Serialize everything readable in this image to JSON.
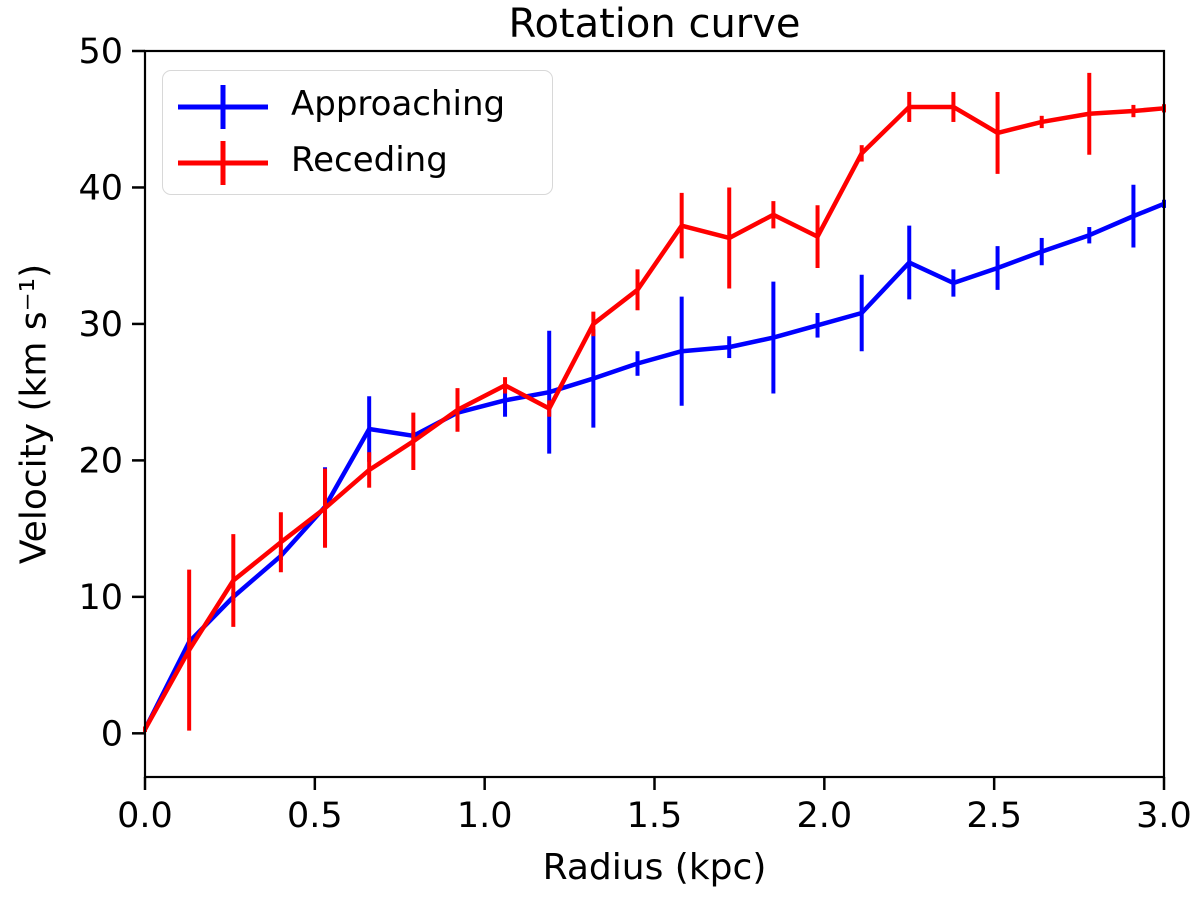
{
  "chart_data": {
    "type": "line",
    "title": "Rotation curve",
    "xlabel": "Radius (kpc)",
    "ylabel": "Velocity (km s⁻¹)",
    "xlim": [
      0,
      3.0
    ],
    "ylim": [
      -3.2,
      50
    ],
    "grid": false,
    "legend_position": "upper left",
    "xticks": {
      "values": [
        0.0,
        0.5,
        1.0,
        1.5,
        2.0,
        2.5,
        3.0
      ],
      "labels": [
        "0.0",
        "0.5",
        "1.0",
        "1.5",
        "2.0",
        "2.5",
        "3.0"
      ]
    },
    "yticks": {
      "values": [
        0,
        10,
        20,
        30,
        40,
        50
      ],
      "labels": [
        "0",
        "10",
        "20",
        "30",
        "40",
        "50"
      ]
    },
    "x": [
      0.0,
      0.13,
      0.26,
      0.4,
      0.53,
      0.66,
      0.79,
      0.92,
      1.06,
      1.19,
      1.32,
      1.45,
      1.58,
      1.72,
      1.85,
      1.98,
      2.11,
      2.25,
      2.38,
      2.51,
      2.64,
      2.78,
      2.91,
      3.0
    ],
    "series": [
      {
        "name": "Approaching",
        "color": "#0000ff",
        "values": [
          0.3,
          6.7,
          10.0,
          13.0,
          16.6,
          22.3,
          21.8,
          23.5,
          24.4,
          25.0,
          26.0,
          27.1,
          28.0,
          28.3,
          29.0,
          29.9,
          30.8,
          34.5,
          33.0,
          34.1,
          35.3,
          36.5,
          37.9,
          38.8
        ],
        "errors": [
          0.2,
          0.3,
          0.3,
          0.3,
          2.9,
          2.4,
          0.3,
          0.3,
          1.2,
          4.5,
          3.6,
          0.9,
          4.0,
          0.8,
          4.1,
          0.9,
          2.8,
          2.7,
          1.0,
          1.6,
          1.0,
          0.6,
          2.3,
          0.3
        ]
      },
      {
        "name": "Receding",
        "color": "#ff0000",
        "values": [
          0.3,
          6.1,
          11.2,
          14.0,
          16.5,
          19.3,
          21.4,
          23.7,
          25.5,
          23.8,
          30.0,
          32.5,
          37.2,
          36.3,
          38.0,
          36.4,
          42.5,
          45.9,
          45.9,
          44.0,
          44.8,
          45.4,
          45.6,
          45.8
        ],
        "errors": [
          0.2,
          5.9,
          3.4,
          2.2,
          2.9,
          1.3,
          2.1,
          1.6,
          0.6,
          0.6,
          0.9,
          1.5,
          2.4,
          3.7,
          1.0,
          2.3,
          0.6,
          1.1,
          1.1,
          3.0,
          0.45,
          3.0,
          0.45,
          0.3
        ]
      }
    ]
  }
}
